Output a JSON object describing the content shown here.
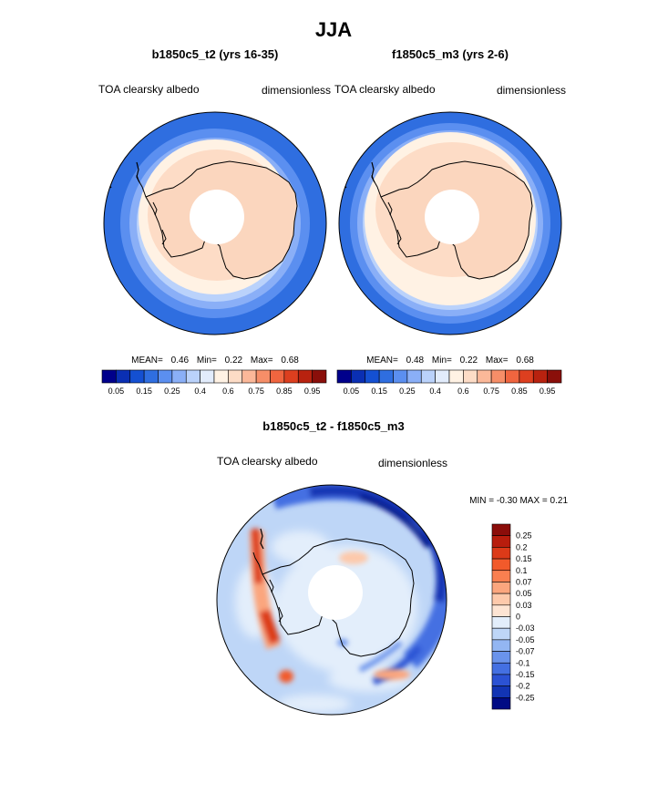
{
  "page": {
    "title": "JJA"
  },
  "colors": {
    "abs_scale": [
      "#00008b",
      "#0a2fb3",
      "#1450d2",
      "#2f6ee0",
      "#5b8ff0",
      "#8aaff7",
      "#bad2fb",
      "#e2ecfc",
      "#fff2e4",
      "#fddcc6",
      "#fbb899",
      "#f68e68",
      "#f0653f",
      "#dd3f1f",
      "#b8220f",
      "#8a0f0a"
    ],
    "diff_scale": [
      "#8b0d0a",
      "#b81d0d",
      "#dc3a18",
      "#f25a2b",
      "#f97f50",
      "#fba67e",
      "#fdc9ab",
      "#fde4d3",
      "#e3eefb",
      "#bed6f7",
      "#93b6f2",
      "#6a93eb",
      "#4470e2",
      "#2b52d4",
      "#1234b4",
      "#000b84"
    ],
    "ocean_base": "#2f6ee0",
    "continent_interior": "#fbd6be",
    "coast_line": "#000000"
  },
  "panels": [
    {
      "title": "b1850c5_t2 (yrs 16-35)",
      "left_label": "TOA clearsky albedo",
      "right_label": "dimensionless",
      "stats": {
        "mean_label": "MEAN=",
        "mean": "0.46",
        "min_label": "Min=",
        "min": "0.22",
        "max_label": "Max=",
        "max": "0.68"
      }
    },
    {
      "title": "f1850c5_m3 (yrs 2-6)",
      "left_label": "TOA clearsky albedo",
      "right_label": "dimensionless",
      "stats": {
        "mean_label": "MEAN=",
        "mean": "0.48",
        "min_label": "Min=",
        "min": "0.22",
        "max_label": "Max=",
        "max": "0.68"
      }
    }
  ],
  "diff_panel": {
    "title": "b1850c5_t2 - f1850c5_m3",
    "left_label": "TOA clearsky albedo",
    "right_label": "dimensionless",
    "minmax_text": "MIN =  -0.30 MAX =   0.21"
  },
  "chart_data": [
    {
      "type": "heatmap",
      "projection": "south polar stereographic",
      "title": "b1850c5_t2 (yrs 16-35)",
      "variable": "TOA clearsky albedo",
      "units": "dimensionless",
      "mean": 0.46,
      "min": 0.22,
      "max": 0.68,
      "colorbar_levels": [
        0.05,
        0.1,
        0.15,
        0.2,
        0.25,
        0.3,
        0.4,
        0.5,
        0.6,
        0.65,
        0.7,
        0.75,
        0.8,
        0.85,
        0.9,
        0.95
      ],
      "colorbar_tick_labels": [
        "0.05",
        "0.15",
        "0.25",
        "0.4",
        "0.6",
        "0.75",
        "0.85",
        "0.95"
      ],
      "ocean_bands": [
        {
          "lat": -50,
          "value": 0.15
        },
        {
          "lat": -56,
          "value": 0.25
        },
        {
          "lat": -60,
          "value": 0.4
        },
        {
          "lat": -63,
          "value": 0.55
        },
        {
          "lat": -66,
          "value": 0.65
        }
      ],
      "continent_value": 0.65,
      "missing_data_lat": -82
    },
    {
      "type": "heatmap",
      "projection": "south polar stereographic",
      "title": "f1850c5_m3 (yrs 2-6)",
      "variable": "TOA clearsky albedo",
      "units": "dimensionless",
      "mean": 0.48,
      "min": 0.22,
      "max": 0.68,
      "colorbar_levels": [
        0.05,
        0.1,
        0.15,
        0.2,
        0.25,
        0.3,
        0.4,
        0.5,
        0.6,
        0.65,
        0.7,
        0.75,
        0.8,
        0.85,
        0.9,
        0.95
      ],
      "colorbar_tick_labels": [
        "0.05",
        "0.15",
        "0.25",
        "0.4",
        "0.6",
        "0.75",
        "0.85",
        "0.95"
      ],
      "ocean_bands": [
        {
          "lat": -48,
          "value": 0.15
        },
        {
          "lat": -53,
          "value": 0.25
        },
        {
          "lat": -57,
          "value": 0.4
        },
        {
          "lat": -60,
          "value": 0.55
        },
        {
          "lat": -63,
          "value": 0.65
        }
      ],
      "continent_value": 0.65,
      "missing_data_lat": -82
    },
    {
      "type": "heatmap",
      "projection": "south polar stereographic",
      "title": "b1850c5_t2 - f1850c5_m3",
      "variable": "TOA clearsky albedo",
      "units": "dimensionless",
      "min": -0.3,
      "max": 0.21,
      "colorbar_levels": [
        0.25,
        0.2,
        0.15,
        0.1,
        0.07,
        0.05,
        0.03,
        0,
        -0.03,
        -0.05,
        -0.07,
        -0.1,
        -0.15,
        -0.2,
        -0.25
      ],
      "colorbar_tick_labels": [
        "0.25",
        "0.2",
        "0.15",
        "0.1",
        "0.07",
        "0.05",
        "0.03",
        "0",
        "-0.03",
        "-0.05",
        "-0.07",
        "-0.1",
        "-0.15",
        "-0.2",
        "-0.25"
      ],
      "features": [
        {
          "name": "negative arc along ice edge (Atlantic-Indian sectors)",
          "value": -0.2
        },
        {
          "name": "positive band west of Antarctic Peninsula",
          "value": 0.15
        },
        {
          "name": "positive patch Bellingshausen Sea",
          "value": 0.1
        },
        {
          "name": "background near zero",
          "value": -0.02
        }
      ]
    }
  ]
}
